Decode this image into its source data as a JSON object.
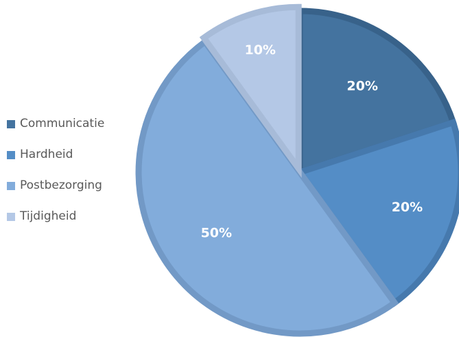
{
  "chart_data": {
    "type": "pie",
    "categories": [
      "Communicatie",
      "Hardheid",
      "Postbezorging",
      "Tijdigheid"
    ],
    "values": [
      20,
      20,
      50,
      10
    ],
    "data_labels": [
      "20%",
      "20%",
      "50%",
      "10%"
    ],
    "colors": [
      "#44739f",
      "#548dc6",
      "#82acdb",
      "#b4c8e6"
    ],
    "edge_colors": [
      "#38628a",
      "#4679ad",
      "#7299c6",
      "#a7bbd8"
    ],
    "legend_position": "left",
    "start_angle_deg": 0,
    "direction": "clockwise"
  }
}
